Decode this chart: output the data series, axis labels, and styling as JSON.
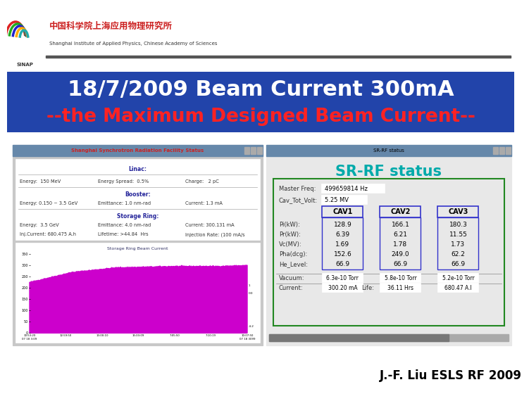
{
  "title_line1": "18/7/2009 Beam Current 300mA",
  "title_line2": "--the Maximum Designed Beam Current--",
  "title_color1": "#FFFFFF",
  "title_color2": "#FF2222",
  "title_bg_color": "#2244AA",
  "slide_bg": "#FFFFFF",
  "footer_text": "J.-F. Liu ESLS RF 2009",
  "footer_color": "#000000",
  "left_panel_title": "Shanghai Synchrotron Radiation Facility Status",
  "linac_label": "Linac:",
  "linac_energy": "Energy:  150 MeV",
  "linac_spread": "Energy Spread:  0.5%",
  "linac_charge": "Charge:   2 pC",
  "booster_label": "Booster:",
  "booster_energy": "Energy: 0.150 ~ 3.5 GeV",
  "booster_emit": "Emittance: 1.0 nm-rad",
  "booster_current": "Current: 1.3 mA",
  "ring_label": "Storage Ring:",
  "ring_energy": "Energy:  3.5 GeV",
  "ring_emit": "Emittance: 4.0 nm-rad",
  "ring_current": "Current: 300.131 mA",
  "ring_inj": "Inj.Current: 680.475 A.h",
  "ring_lifetime": "Lifetime: >44.84  Hrs",
  "ring_injrate": "Injection Rate: (100 mA/s",
  "plot_title": "Storage Ring Beam Current",
  "right_panel_title": "SR-RF status",
  "right_panel_title_color": "#00AAAA",
  "rf_master_freq_label": "Master Freq:",
  "rf_master_freq_val": "499659814 Hz",
  "rf_cav_volt_label": "Cav_Tot_Volt:",
  "rf_cav_volt_val": "5.25 MV",
  "rf_cav1_label": "CAV1",
  "rf_cav2_label": "CAV2",
  "rf_cav3_label": "CAV3",
  "rf_rows": [
    "Pi(kW):",
    "Pr(kW):",
    "Vc(MV):",
    "Pha(dcg):",
    "He_Level:"
  ],
  "rf_vals1": [
    "128.9",
    "6.39",
    "1.69",
    "152.6",
    "66.9"
  ],
  "rf_vals2": [
    "166.1",
    "6.21",
    "1.78",
    "249.0",
    "66.9"
  ],
  "rf_vals3": [
    "180.3",
    "11.55",
    "1.73",
    "62.2",
    "66.9"
  ],
  "rf_vac_cav1": "6.3e-10 Torr",
  "rf_vac_cav2": "5.8e-10 Torr",
  "rf_vac_cav3": "5.2e-10 Torr",
  "rf_curr_line": "Current:  300.20 mA   Life:  36.11 Hrs   680.47 A.I",
  "magenta_color": "#CC00CC",
  "cav_border_color": "#3333CC",
  "green_box_color": "#228822",
  "win_titlebar_color": "#6688AA",
  "win_bg_color": "#C8C8C8",
  "content_bg": "#E8E8E8"
}
